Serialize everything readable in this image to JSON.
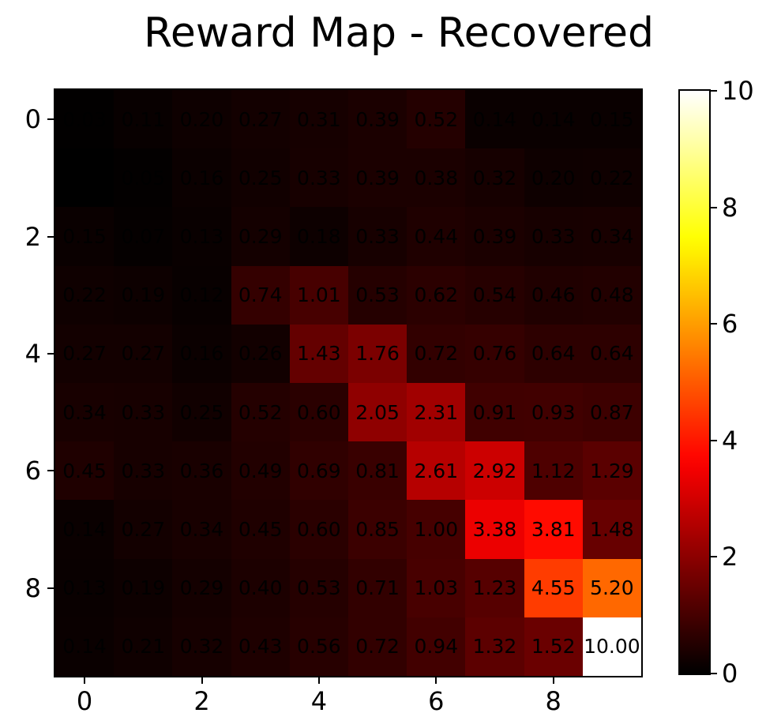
{
  "chart_data": {
    "type": "heatmap",
    "title": "Reward Map - Recovered",
    "colormap": "hot",
    "vmin": 0,
    "vmax": 10,
    "rows": 10,
    "cols": 10,
    "x_tick_values": [
      0,
      2,
      4,
      6,
      8
    ],
    "y_tick_values": [
      0,
      2,
      4,
      6,
      8
    ],
    "colorbar_tick_values": [
      0,
      2,
      4,
      6,
      8,
      10
    ],
    "cell_label_decimals": 2,
    "values": [
      [
        0.03,
        0.11,
        0.2,
        0.27,
        0.31,
        0.39,
        0.52,
        0.14,
        0.14,
        0.15
      ],
      [
        0.0,
        0.05,
        0.16,
        0.25,
        0.33,
        0.39,
        0.38,
        0.32,
        0.2,
        0.22
      ],
      [
        0.15,
        0.07,
        0.13,
        0.29,
        0.18,
        0.33,
        0.44,
        0.39,
        0.33,
        0.34
      ],
      [
        0.22,
        0.19,
        0.12,
        0.74,
        1.01,
        0.53,
        0.62,
        0.54,
        0.46,
        0.48
      ],
      [
        0.27,
        0.27,
        0.16,
        0.26,
        1.43,
        1.76,
        0.72,
        0.76,
        0.64,
        0.64
      ],
      [
        0.34,
        0.33,
        0.25,
        0.52,
        0.6,
        2.05,
        2.31,
        0.91,
        0.93,
        0.87
      ],
      [
        0.45,
        0.33,
        0.36,
        0.49,
        0.69,
        0.81,
        2.61,
        2.92,
        1.12,
        1.29
      ],
      [
        0.14,
        0.27,
        0.34,
        0.45,
        0.6,
        0.85,
        1.0,
        3.38,
        3.81,
        1.48
      ],
      [
        0.13,
        0.19,
        0.29,
        0.4,
        0.53,
        0.71,
        1.03,
        1.23,
        4.55,
        5.2
      ],
      [
        0.14,
        0.21,
        0.32,
        0.43,
        0.56,
        0.72,
        0.94,
        1.32,
        1.52,
        10.0
      ]
    ],
    "annotation_text_color": "#000000",
    "axes_color": "#000000",
    "background_color": "#ffffff",
    "legend_position": "colorbar-right",
    "grid": false
  }
}
